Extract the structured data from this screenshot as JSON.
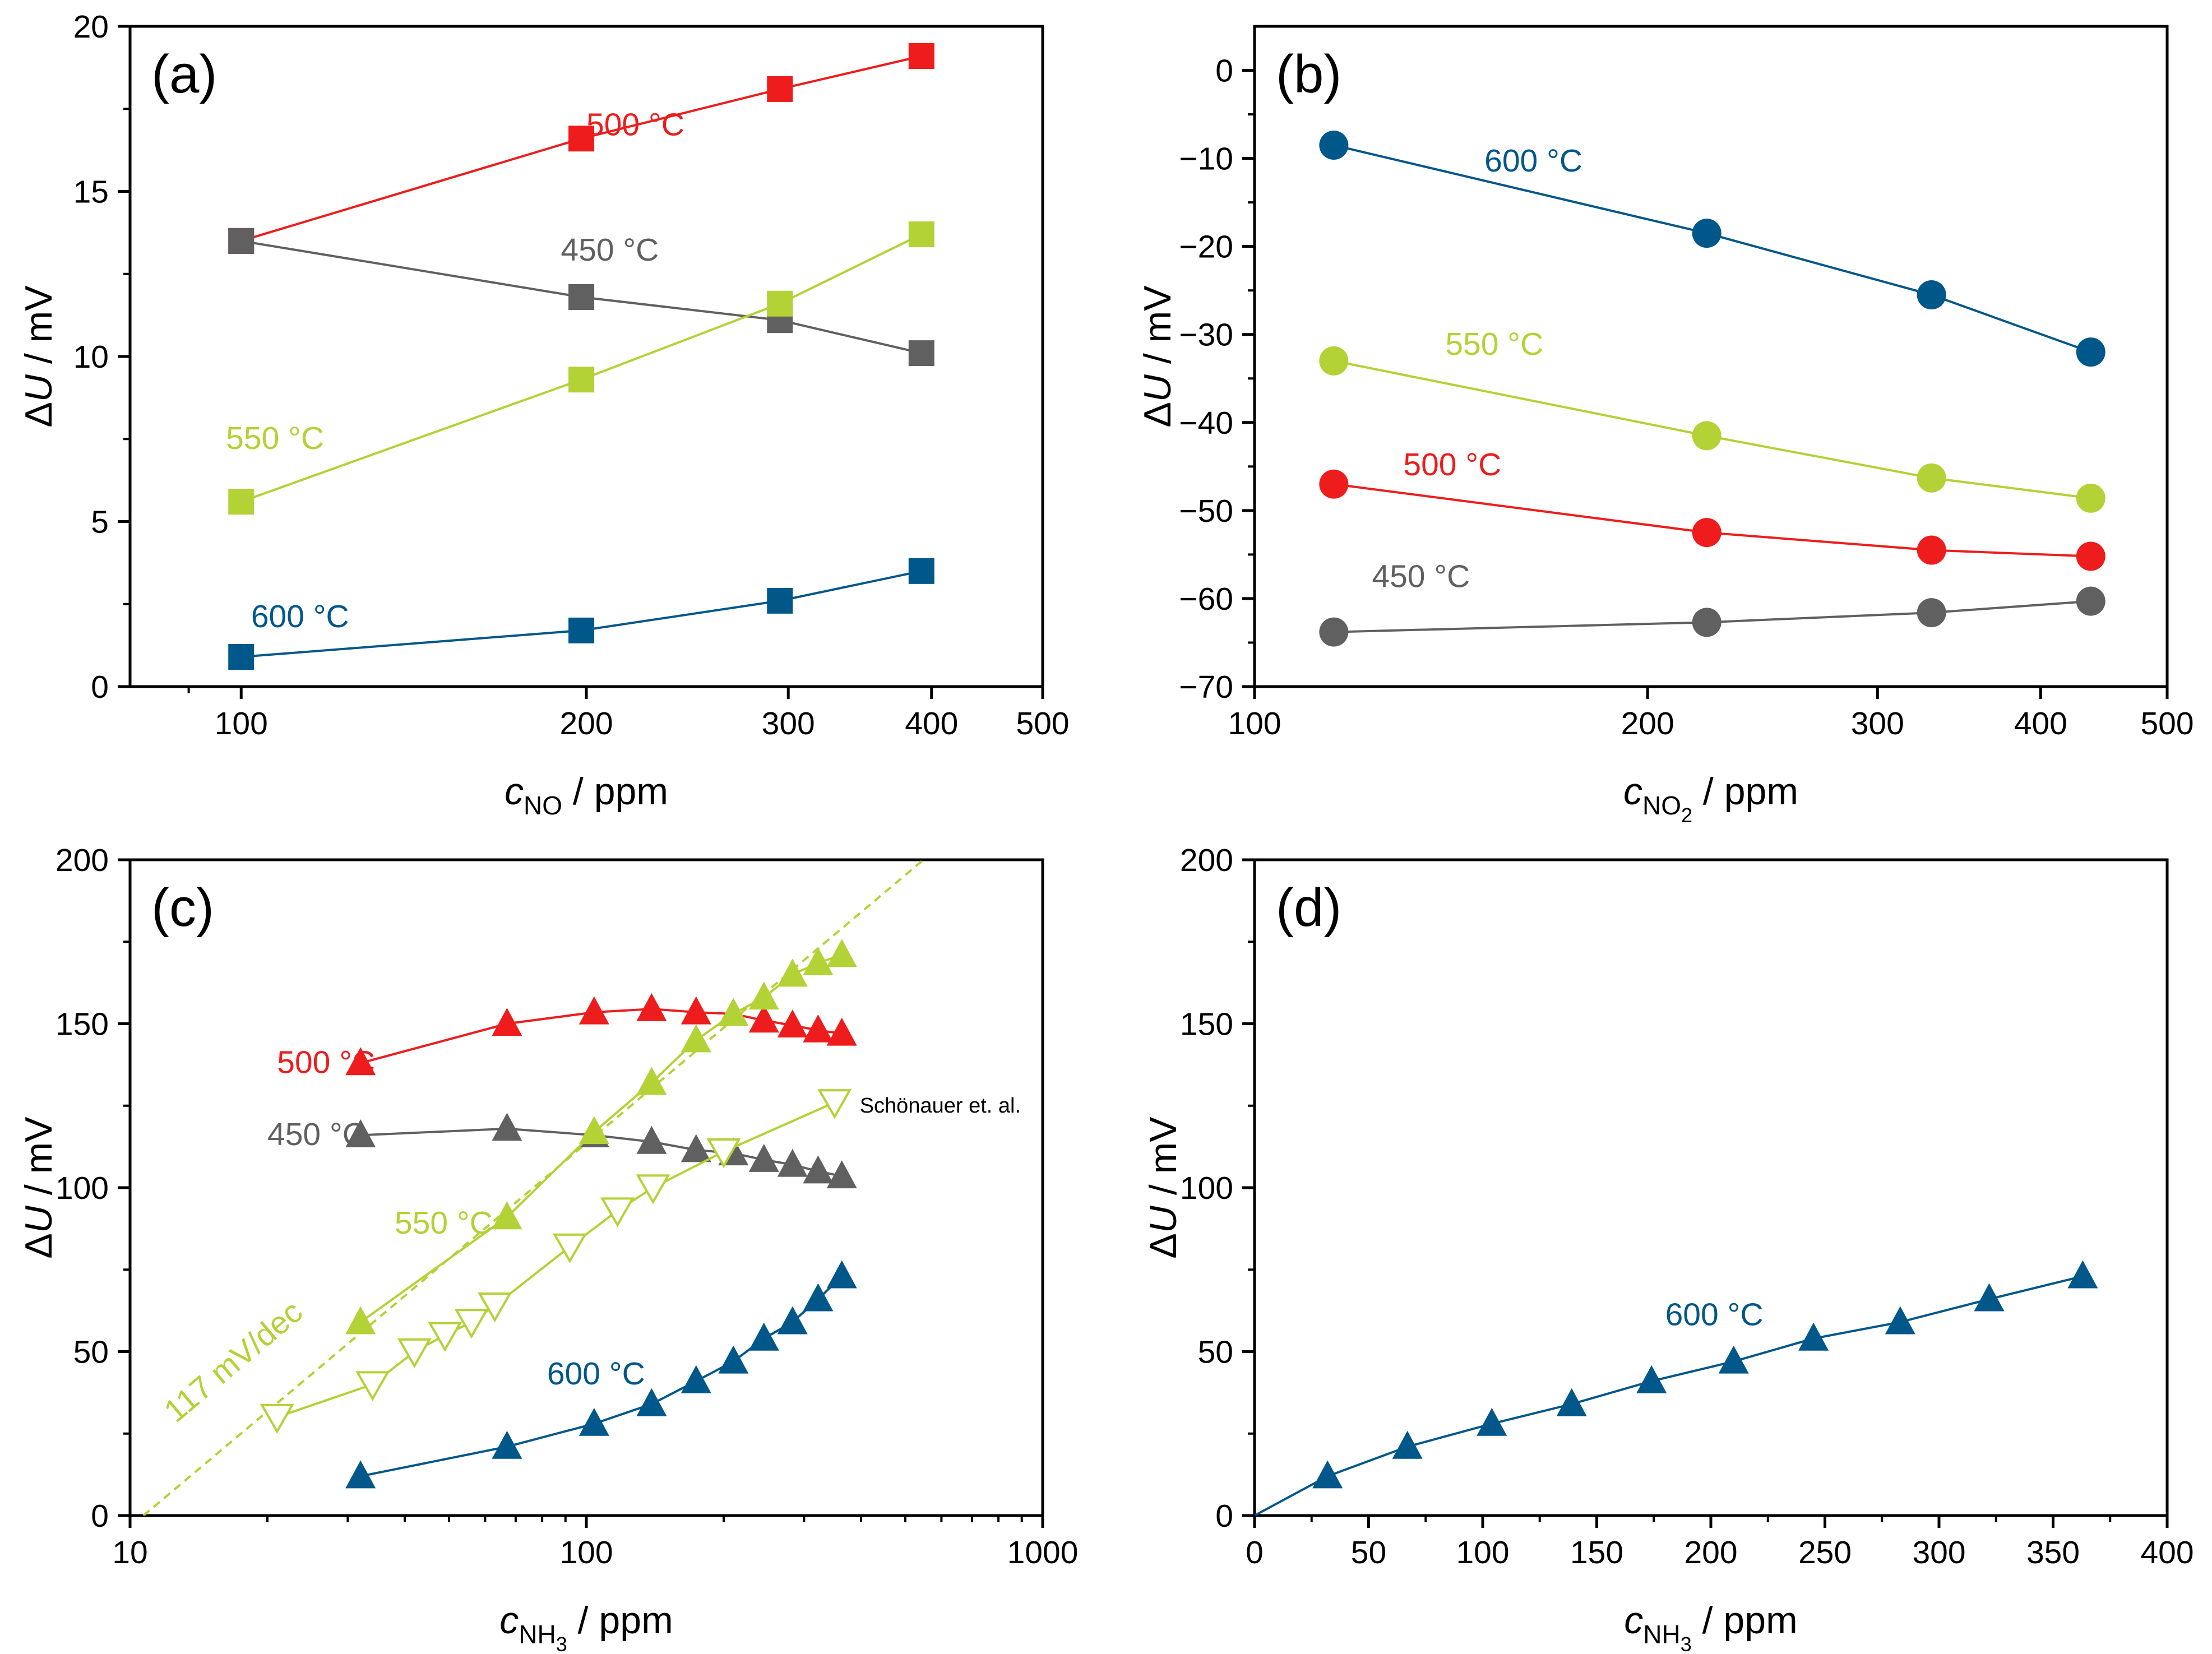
{
  "colors": {
    "t450": "#606060",
    "t500": "#ee1c1c",
    "t550": "#b2d235",
    "t600": "#00578a",
    "axis": "#000000"
  },
  "chart_data": [
    {
      "id": "a",
      "panel_label": "(a)",
      "type": "line",
      "xscale": "log",
      "xlim": [
        80,
        500
      ],
      "ylim": [
        0,
        20
      ],
      "xticks": [
        100,
        200,
        300,
        400,
        500
      ],
      "yticks": [
        0,
        5,
        10,
        15,
        20
      ],
      "xtick_labels": [
        "100",
        "200",
        "300",
        "400",
        "500"
      ],
      "ytick_labels": [
        "0",
        "5",
        "10",
        "15",
        "20"
      ],
      "xlabel_main": "c",
      "xlabel_sub": "NO",
      "xlabel_sub2": "",
      "xlabel_unit": " / ppm",
      "ylabel_delta": "Δ",
      "ylabel_var": "U",
      "ylabel_unit": " / mV",
      "marker": "square",
      "series": [
        {
          "name": "500 °C",
          "key": "t500",
          "x": [
            100,
            198,
            295,
            392
          ],
          "y": [
            13.5,
            16.6,
            18.1,
            19.1
          ],
          "label_at": [
            200,
            16.7
          ]
        },
        {
          "name": "450 °C",
          "key": "t450",
          "x": [
            100,
            198,
            295,
            392
          ],
          "y": [
            13.5,
            11.8,
            11.1,
            10.1
          ],
          "label_at": [
            190,
            12.9
          ]
        },
        {
          "name": "550 °C",
          "key": "t550",
          "x": [
            100,
            198,
            295,
            392
          ],
          "y": [
            5.6,
            9.3,
            11.6,
            13.7
          ],
          "label_at": [
            97,
            7.2
          ]
        },
        {
          "name": "600 °C",
          "key": "t600",
          "x": [
            100,
            198,
            295,
            392
          ],
          "y": [
            0.9,
            1.7,
            2.6,
            3.5
          ],
          "label_at": [
            102,
            1.8
          ]
        }
      ]
    },
    {
      "id": "b",
      "panel_label": "(b)",
      "type": "line",
      "xscale": "log",
      "xlim": [
        100,
        500
      ],
      "ylim": [
        -70,
        5
      ],
      "xticks": [
        100,
        200,
        300,
        400,
        500
      ],
      "yticks": [
        -70,
        -60,
        -50,
        -40,
        -30,
        -20,
        -10,
        0
      ],
      "xtick_labels": [
        "100",
        "200",
        "300",
        "400",
        "500"
      ],
      "ytick_labels": [
        "−70",
        "−60",
        "−50",
        "−40",
        "−30",
        "−20",
        "−10",
        "0"
      ],
      "xlabel_main": "c",
      "xlabel_sub": "NO",
      "xlabel_sub2": "2",
      "xlabel_unit": " / ppm",
      "ylabel_delta": "Δ",
      "ylabel_var": "U",
      "ylabel_unit": " / mV",
      "marker": "circle",
      "series": [
        {
          "name": "600 °C",
          "key": "t600",
          "x": [
            115,
            222,
            330,
            437
          ],
          "y": [
            -8.5,
            -18.5,
            -25.5,
            -32
          ],
          "label_at": [
            150,
            -11.5
          ]
        },
        {
          "name": "550 °C",
          "key": "t550",
          "x": [
            115,
            222,
            330,
            437
          ],
          "y": [
            -33,
            -41.5,
            -46.3,
            -48.6
          ],
          "label_at": [
            140,
            -32.3
          ]
        },
        {
          "name": "500 °C",
          "key": "t500",
          "x": [
            115,
            222,
            330,
            437
          ],
          "y": [
            -47,
            -52.5,
            -54.5,
            -55.2
          ],
          "label_at": [
            130,
            -46
          ]
        },
        {
          "name": "450 °C",
          "key": "t450",
          "x": [
            115,
            222,
            330,
            437
          ],
          "y": [
            -63.8,
            -62.7,
            -61.6,
            -60.3
          ],
          "label_at": [
            123,
            -58.7
          ]
        }
      ]
    },
    {
      "id": "c",
      "panel_label": "(c)",
      "type": "line",
      "xscale": "log",
      "xlim": [
        10,
        1000
      ],
      "ylim": [
        0,
        200
      ],
      "xticks": [
        10,
        100,
        1000
      ],
      "yticks": [
        0,
        50,
        100,
        150,
        200
      ],
      "xtick_labels": [
        "10",
        "100",
        "1000"
      ],
      "ytick_labels": [
        "0",
        "50",
        "100",
        "150",
        "200"
      ],
      "xlabel_main": "c",
      "xlabel_sub": "NH",
      "xlabel_sub2": "3",
      "xlabel_unit": " / ppm",
      "ylabel_delta": "Δ",
      "ylabel_var": "U",
      "ylabel_unit": " / mV",
      "marker": "triangle",
      "series": [
        {
          "name": "500 °C",
          "key": "t500",
          "x": [
            32,
            67,
            104,
            139,
            174,
            210,
            245,
            283,
            322,
            363
          ],
          "y": [
            138,
            150,
            153.5,
            154.5,
            153.5,
            153,
            151,
            149.5,
            148,
            147
          ],
          "label_at": [
            21,
            135
          ]
        },
        {
          "name": "450 °C",
          "key": "t450",
          "x": [
            32,
            67,
            104,
            139,
            174,
            210,
            245,
            283,
            322,
            363
          ],
          "y": [
            116,
            118,
            116,
            114,
            111.5,
            110.5,
            108.5,
            107,
            105,
            103.5
          ],
          "label_at": [
            20,
            113
          ]
        },
        {
          "name": "550 °C",
          "key": "t550",
          "x": [
            32,
            67,
            104,
            139,
            174,
            210,
            245,
            283,
            322,
            363
          ],
          "y": [
            59,
            91,
            117,
            132,
            145,
            153,
            158,
            165,
            168.5,
            171
          ],
          "label_at": [
            38,
            86
          ]
        },
        {
          "name": "600 °C",
          "key": "t600",
          "x": [
            32,
            67,
            104,
            139,
            174,
            210,
            245,
            283,
            322,
            363
          ],
          "y": [
            12,
            21,
            28,
            34,
            41,
            47,
            54,
            59,
            66,
            73
          ],
          "label_at": [
            82,
            40
          ]
        },
        {
          "name": "Schönauer et. al.",
          "key": "t550",
          "open": true,
          "x": [
            21,
            34,
            42,
            49,
            56,
            63,
            92,
            117,
            140,
            200,
            350
          ],
          "y": [
            30,
            40,
            50,
            55,
            59,
            64,
            82,
            93,
            100,
            111,
            126
          ],
          "label_at": [
            365,
            126
          ]
        }
      ],
      "reference_line": {
        "label": "117 mV/dec",
        "slope_per_decade": 117,
        "x_intercept": 10.7,
        "key": "t550",
        "label_at": [
          12.6,
          28
        ]
      }
    },
    {
      "id": "d",
      "panel_label": "(d)",
      "type": "line",
      "xscale": "linear",
      "xlim": [
        0,
        400
      ],
      "ylim": [
        0,
        200
      ],
      "xticks": [
        0,
        50,
        100,
        150,
        200,
        250,
        300,
        350,
        400
      ],
      "yticks": [
        0,
        50,
        100,
        150,
        200
      ],
      "xtick_labels": [
        "0",
        "50",
        "100",
        "150",
        "200",
        "250",
        "300",
        "350",
        "400"
      ],
      "ytick_labels": [
        "0",
        "50",
        "100",
        "150",
        "200"
      ],
      "xlabel_main": "c",
      "xlabel_sub": "NH",
      "xlabel_sub2": "3",
      "xlabel_unit": " / ppm",
      "ylabel_delta": "Δ",
      "ylabel_var": "U",
      "ylabel_unit": " / mV",
      "marker": "triangle",
      "series": [
        {
          "name": "600 °C",
          "key": "t600",
          "x": [
            32,
            67,
            104,
            139,
            174,
            210,
            245,
            283,
            322,
            363
          ],
          "y": [
            12,
            21,
            28,
            34,
            41,
            47,
            54,
            59,
            66,
            73
          ],
          "line_from_origin": true,
          "label_at": [
            180,
            58
          ]
        }
      ]
    }
  ]
}
